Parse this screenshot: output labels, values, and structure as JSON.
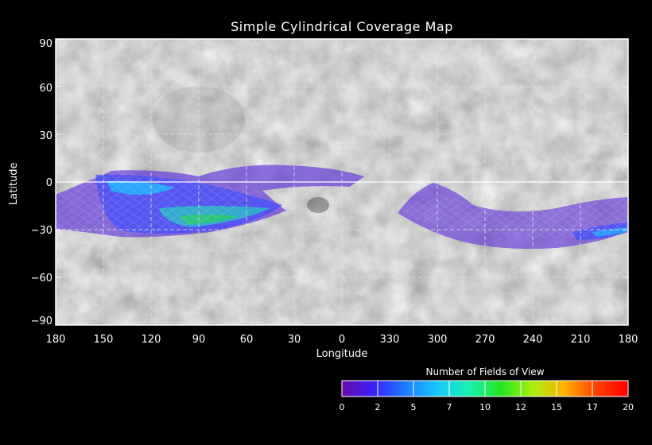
{
  "title": "Simple Cylindrical Coverage Map",
  "xlabel": "Longitude",
  "ylabel": "Latitude",
  "x_ticks": [
    "180",
    "150",
    "120",
    "90",
    "60",
    "30",
    "0",
    "330",
    "300",
    "270",
    "240",
    "210",
    "180"
  ],
  "y_ticks": [
    "90",
    "60",
    "30",
    "0",
    "−30",
    "−60",
    "−90"
  ],
  "colorbar": {
    "title": "Number of Fields of View",
    "ticks": [
      "0",
      "2",
      "5",
      "7",
      "10",
      "12",
      "15",
      "17",
      "20"
    ],
    "colors": [
      "#6a0aa8",
      "#3a20ff",
      "#1e7bff",
      "#17c8ff",
      "#19f0b0",
      "#22e61e",
      "#a8f010",
      "#ffb000",
      "#ff4000",
      "#ff0000"
    ]
  },
  "coverage": {
    "western_band": {
      "lon_range": [
        180,
        20
      ],
      "lat_range": [
        -30,
        8
      ],
      "peak_fov": 10
    },
    "eastern_band": {
      "lon_range": [
        295,
        180
      ],
      "lat_range": [
        -40,
        0
      ],
      "peak_fov": 5
    }
  }
}
